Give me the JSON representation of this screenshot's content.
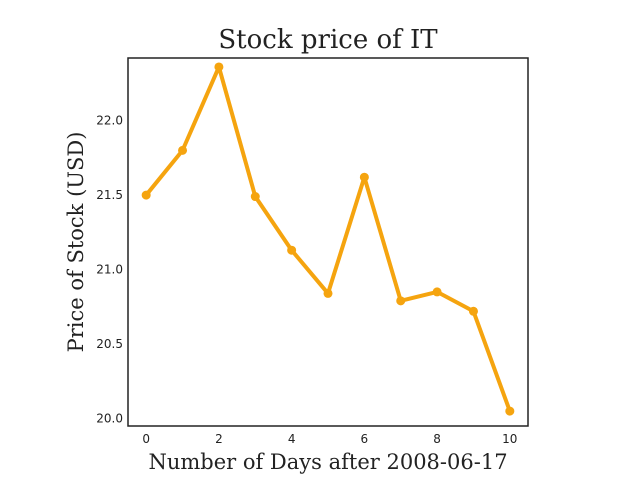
{
  "chart_data": {
    "type": "line",
    "title": "Stock price of IT",
    "xlabel": "Number of Days after 2008-06-17",
    "ylabel": "Price of Stock (USD)",
    "x": [
      0,
      1,
      2,
      3,
      4,
      5,
      6,
      7,
      8,
      9,
      10
    ],
    "series": [
      {
        "values": [
          21.5,
          21.8,
          22.36,
          21.49,
          21.13,
          20.84,
          21.62,
          20.79,
          20.85,
          20.72,
          20.05
        ],
        "color": "#f5a40f"
      }
    ],
    "xticks": [
      "0",
      "2",
      "4",
      "6",
      "8",
      "10"
    ],
    "yticks": [
      "20.0",
      "20.5",
      "21.0",
      "21.5",
      "22.0"
    ],
    "xlim": [
      -0.5,
      10.5
    ],
    "ylim": [
      19.95,
      22.42
    ],
    "grid": false,
    "legend": "none"
  }
}
